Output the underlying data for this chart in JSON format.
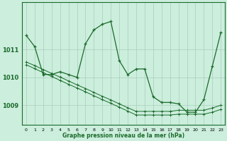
{
  "bg_color": "#cceedd",
  "grid_color": "#aaccbb",
  "line_color": "#1a6b2a",
  "xlabel": "Graphe pression niveau de la mer (hPa)",
  "ylim": [
    1008.3,
    1012.7
  ],
  "xlim": [
    -0.5,
    23.5
  ],
  "yticks": [
    1009,
    1010,
    1011
  ],
  "xticks": [
    0,
    1,
    2,
    3,
    4,
    5,
    6,
    7,
    8,
    9,
    10,
    11,
    12,
    13,
    14,
    15,
    16,
    17,
    18,
    19,
    20,
    21,
    22,
    23
  ],
  "y_main": [
    1011.5,
    1011.1,
    1010.1,
    1010.1,
    1010.2,
    1010.1,
    1010.0,
    1011.2,
    1011.7,
    1011.9,
    1012.0,
    1010.6,
    1010.1,
    1010.3,
    1010.3,
    1009.3,
    1009.1,
    1009.1,
    1009.05,
    1008.75,
    1008.75,
    1009.2,
    1010.4,
    1011.6
  ],
  "y_diag1": [
    1010.55,
    1010.42,
    1010.28,
    1010.14,
    1010.01,
    1009.87,
    1009.73,
    1009.6,
    1009.46,
    1009.32,
    1009.19,
    1009.05,
    1008.91,
    1008.78,
    1008.78,
    1008.78,
    1008.78,
    1008.78,
    1008.82,
    1008.82,
    1008.82,
    1008.82,
    1008.9,
    1009.0
  ],
  "y_diag2": [
    1010.45,
    1010.31,
    1010.17,
    1010.03,
    1009.89,
    1009.75,
    1009.62,
    1009.48,
    1009.34,
    1009.2,
    1009.07,
    1008.93,
    1008.79,
    1008.65,
    1008.65,
    1008.65,
    1008.65,
    1008.65,
    1008.68,
    1008.68,
    1008.68,
    1008.68,
    1008.75,
    1008.85
  ]
}
